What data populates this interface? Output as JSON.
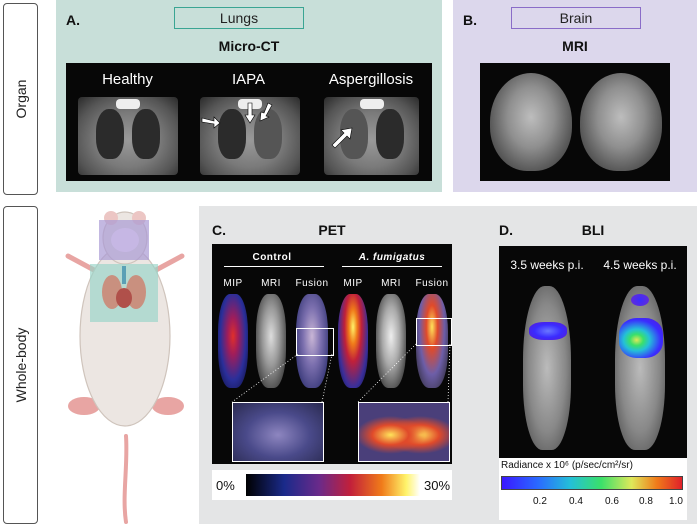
{
  "side": {
    "organ": "Organ",
    "whole_body": "Whole-body"
  },
  "panelA": {
    "letter": "A.",
    "tag": "Lungs",
    "title": "Micro-CT",
    "labels": [
      "Healthy",
      "IAPA",
      "Aspergillosis"
    ]
  },
  "panelB": {
    "letter": "B.",
    "tag": "Brain",
    "title": "MRI"
  },
  "panelC": {
    "letter": "C.",
    "title": "PET",
    "group_control": "Control",
    "group_afum": "A. fumigatus",
    "columns": [
      "MIP",
      "MRI",
      "Fusion",
      "MIP",
      "MRI",
      "Fusion"
    ],
    "scale_min": "0%",
    "scale_max": "30%"
  },
  "panelD": {
    "letter": "D.",
    "title": "BLI",
    "time1": "3.5 weeks p.i.",
    "time2": "4.5 weeks p.i.",
    "radiance_label": "Radiance x 10⁶ (p/sec/cm²/sr)",
    "ticks": [
      "0.2",
      "0.4",
      "0.6",
      "0.8",
      "1.0"
    ]
  },
  "colors": {
    "lungs_panel": "#c8dfd9",
    "brain_panel": "#dcd7ec",
    "whole_panel": "#e4e5e6",
    "lungs_tag": "#3aa593",
    "brain_tag": "#8a6cc8"
  }
}
